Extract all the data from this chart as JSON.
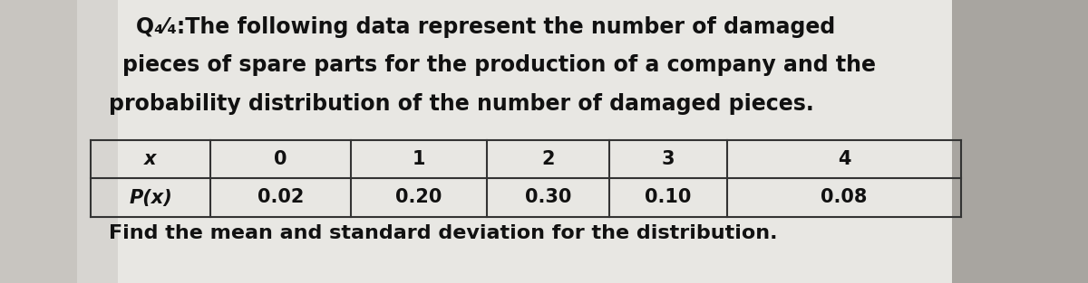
{
  "bg_color": "#c8c5c0",
  "paper_color": "#e8e7e3",
  "right_bg_color": "#b8b5b0",
  "title_line1": "Q₄⁄₄:The following data represent the number of damaged",
  "title_line2": "pieces of spare parts for the production of a company and the",
  "title_line3": "probability distribution of the number of damaged pieces.",
  "table_headers": [
    "x",
    "0",
    "1",
    "2",
    "3",
    "4"
  ],
  "table_row_label": "P(x)",
  "table_values": [
    "0.02",
    "0.20",
    "0.30",
    "0.10",
    "0.08"
  ],
  "footer": "Find the mean and standard deviation for the distribution.",
  "text_color": "#111111",
  "table_line_color": "#333333",
  "font_size_title": 17,
  "font_size_table": 15,
  "font_size_footer": 16,
  "fig_width": 12.0,
  "fig_height": 3.13
}
